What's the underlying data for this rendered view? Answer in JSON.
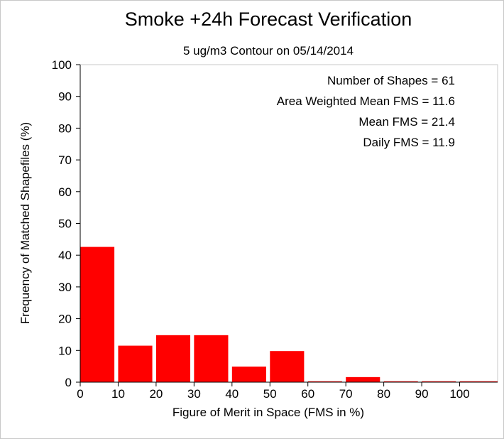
{
  "chart_data": {
    "type": "bar",
    "title": "Smoke +24h Forecast Verification",
    "subtitle": "5 ug/m3 Contour on 05/14/2014",
    "xlabel": "Figure of Merit in Space (FMS in %)",
    "ylabel": "Frequency of Matched Shapefiles (%)",
    "xlim": [
      0,
      110
    ],
    "ylim": [
      0,
      100
    ],
    "x_ticks": [
      0,
      10,
      20,
      30,
      40,
      50,
      60,
      70,
      80,
      90,
      100
    ],
    "y_ticks": [
      0,
      10,
      20,
      30,
      40,
      50,
      60,
      70,
      80,
      90,
      100
    ],
    "bin_edges": [
      [
        0,
        9
      ],
      [
        10,
        19
      ],
      [
        20,
        29
      ],
      [
        30,
        39
      ],
      [
        40,
        49
      ],
      [
        50,
        59
      ],
      [
        60,
        69
      ],
      [
        70,
        79
      ],
      [
        80,
        89
      ],
      [
        90,
        99
      ],
      [
        100,
        110
      ]
    ],
    "values": [
      42.6,
      11.5,
      14.8,
      14.8,
      4.9,
      9.8,
      0,
      1.6,
      0,
      0,
      0
    ],
    "bar_color": "#ff0000",
    "grid": false,
    "annotations": [
      "Number of Shapes = 61",
      "Area Weighted Mean FMS = 11.6",
      "Mean FMS = 21.4",
      "Daily FMS = 11.9"
    ]
  }
}
